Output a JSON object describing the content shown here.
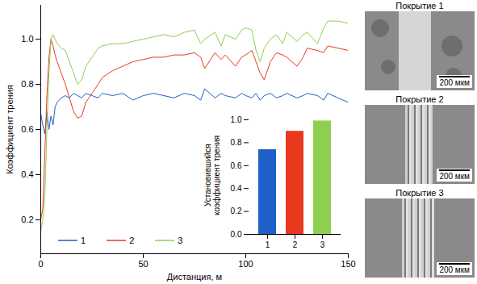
{
  "chart_data": [
    {
      "type": "line",
      "xlabel": "Дистанция, м",
      "ylabel": "Коэффициент трения",
      "x": [
        0,
        1,
        2,
        3,
        4,
        5,
        6,
        7,
        8,
        10,
        12,
        14,
        16,
        18,
        20,
        22,
        25,
        28,
        30,
        35,
        40,
        45,
        50,
        55,
        60,
        65,
        70,
        75,
        78,
        80,
        85,
        88,
        90,
        95,
        98,
        100,
        103,
        105,
        107,
        109,
        112,
        115,
        118,
        120,
        125,
        128,
        130,
        135,
        138,
        140,
        145,
        150
      ],
      "series": [
        {
          "name": "1",
          "color": "#1f5fc8",
          "values": [
            0.67,
            0.62,
            0.58,
            0.68,
            0.6,
            0.66,
            0.62,
            0.7,
            0.72,
            0.74,
            0.75,
            0.74,
            0.76,
            0.75,
            0.74,
            0.76,
            0.75,
            0.74,
            0.76,
            0.75,
            0.76,
            0.73,
            0.75,
            0.76,
            0.75,
            0.74,
            0.76,
            0.75,
            0.73,
            0.78,
            0.74,
            0.76,
            0.75,
            0.74,
            0.76,
            0.75,
            0.74,
            0.76,
            0.73,
            0.75,
            0.76,
            0.74,
            0.75,
            0.76,
            0.74,
            0.75,
            0.76,
            0.75,
            0.73,
            0.76,
            0.74,
            0.72
          ]
        },
        {
          "name": "2",
          "color": "#e8391f",
          "values": [
            0.2,
            0.25,
            0.5,
            0.75,
            0.92,
            1.0,
            0.97,
            0.93,
            0.9,
            0.85,
            0.8,
            0.74,
            0.68,
            0.65,
            0.66,
            0.72,
            0.76,
            0.8,
            0.83,
            0.86,
            0.88,
            0.9,
            0.91,
            0.92,
            0.92,
            0.93,
            0.93,
            0.94,
            0.92,
            0.87,
            0.94,
            0.91,
            0.93,
            0.88,
            0.92,
            0.93,
            0.95,
            0.9,
            0.85,
            0.82,
            0.9,
            0.94,
            0.93,
            0.92,
            0.88,
            0.92,
            0.96,
            0.95,
            0.94,
            0.97,
            0.96,
            0.95
          ]
        },
        {
          "name": "3",
          "color": "#8fcf4f",
          "values": [
            0.15,
            0.2,
            0.3,
            0.6,
            0.85,
            1.0,
            1.02,
            1.0,
            0.98,
            0.96,
            0.95,
            0.9,
            0.85,
            0.8,
            0.82,
            0.88,
            0.92,
            0.96,
            0.97,
            0.98,
            0.98,
            0.99,
            1.0,
            1.01,
            1.02,
            1.01,
            1.03,
            1.04,
            0.98,
            1.0,
            1.03,
            0.97,
            1.02,
            1.0,
            1.04,
            1.05,
            1.04,
            0.95,
            0.9,
            0.96,
            1.0,
            1.02,
            0.98,
            1.03,
            0.99,
            1.02,
            1.03,
            0.98,
            1.05,
            1.08,
            1.08,
            1.07
          ]
        }
      ],
      "xlim": [
        0,
        150
      ],
      "xticks": [
        0,
        50,
        100,
        150
      ],
      "ylim": [
        0.05,
        1.15
      ],
      "yticks": [
        0.2,
        0.4,
        0.6,
        0.8,
        {
          "value": 1,
          "label": "1.0"
        }
      ],
      "legend": "lower left"
    },
    {
      "type": "bar",
      "ylabel": "Установившийся коэффициент трения",
      "categories": [
        "1",
        "2",
        "3"
      ],
      "values": [
        0.74,
        0.9,
        0.99
      ],
      "colors": [
        "#1f5fc8",
        "#e8391f",
        "#8fcf4f"
      ],
      "ylim": [
        0,
        1
      ],
      "yticks": [
        {
          "value": 0,
          "label": "0.0"
        },
        0.2,
        0.4,
        0.6,
        0.8,
        {
          "value": 1,
          "label": "1.0"
        }
      ]
    }
  ],
  "images": [
    {
      "title": "Покрытие 1",
      "scale_bar": "200 мкм"
    },
    {
      "title": "Покрытие 2",
      "scale_bar": "200 мкм"
    },
    {
      "title": "Покрытие 3",
      "scale_bar": "200 мкм"
    }
  ]
}
